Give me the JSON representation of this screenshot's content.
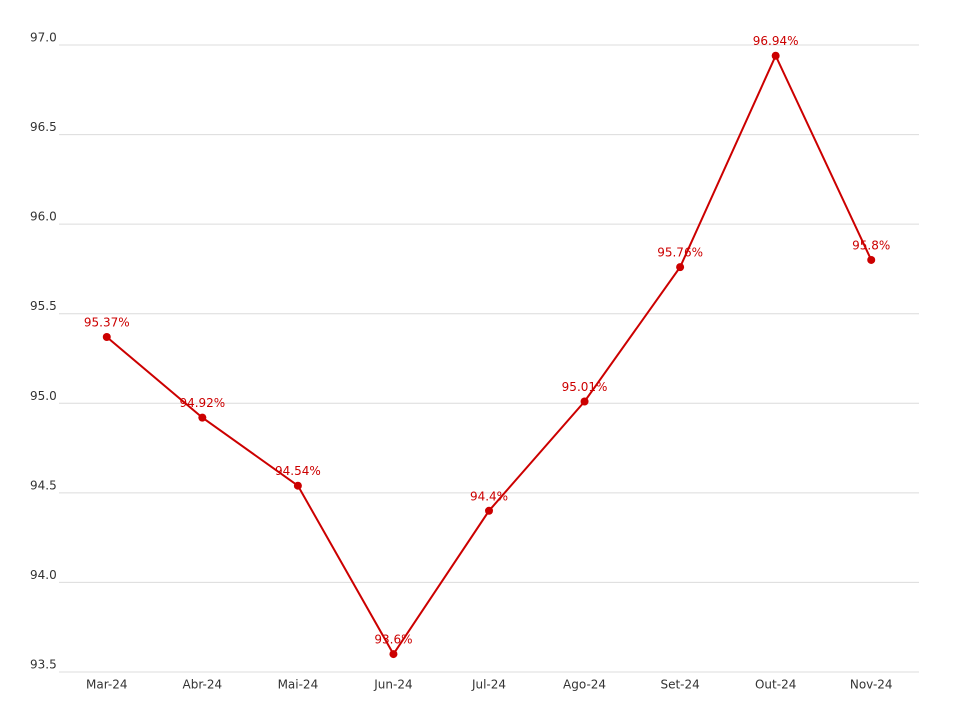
{
  "chart_data": {
    "type": "line",
    "categories": [
      "Mar-24",
      "Abr-24",
      "Mai-24",
      "Jun-24",
      "Jul-24",
      "Ago-24",
      "Set-24",
      "Out-24",
      "Nov-24"
    ],
    "values": [
      95.37,
      94.92,
      94.54,
      93.6,
      94.4,
      95.01,
      95.76,
      96.94,
      95.8
    ],
    "value_labels": [
      "95.37%",
      "94.92%",
      "94.54%",
      "93.6%",
      "94.4%",
      "95.01%",
      "95.76%",
      "96.94%",
      "95.8%"
    ],
    "color": "#cc0000",
    "ylim": [
      93.5,
      97
    ],
    "yticks": [
      93.5,
      {
        "value": 94,
        "label": "94.0"
      },
      94.5,
      {
        "value": 95,
        "label": "95.0"
      },
      95.5,
      {
        "value": 96,
        "label": "96.0"
      },
      96.5,
      {
        "value": 97,
        "label": "97.0"
      }
    ],
    "grid": true
  }
}
